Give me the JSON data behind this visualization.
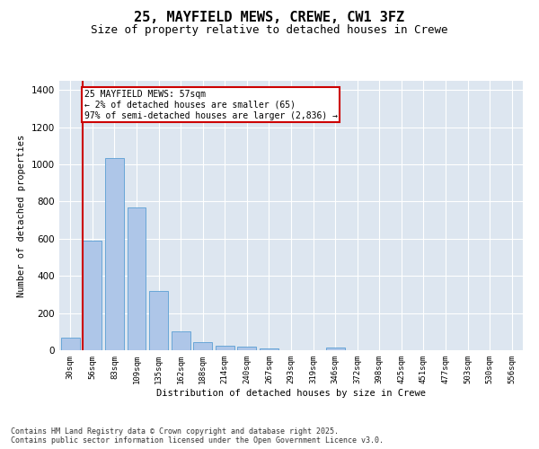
{
  "title": "25, MAYFIELD MEWS, CREWE, CW1 3FZ",
  "subtitle": "Size of property relative to detached houses in Crewe",
  "xlabel": "Distribution of detached houses by size in Crewe",
  "ylabel": "Number of detached properties",
  "categories": [
    "30sqm",
    "56sqm",
    "83sqm",
    "109sqm",
    "135sqm",
    "162sqm",
    "188sqm",
    "214sqm",
    "240sqm",
    "267sqm",
    "293sqm",
    "319sqm",
    "346sqm",
    "372sqm",
    "398sqm",
    "425sqm",
    "451sqm",
    "477sqm",
    "503sqm",
    "530sqm",
    "556sqm"
  ],
  "values": [
    70,
    590,
    1035,
    770,
    320,
    100,
    45,
    25,
    18,
    10,
    0,
    0,
    15,
    0,
    0,
    0,
    0,
    0,
    0,
    0,
    0
  ],
  "bar_color": "#aec6e8",
  "bar_edge_color": "#5a9fd4",
  "vline_color": "#cc0000",
  "annotation_text": "25 MAYFIELD MEWS: 57sqm\n← 2% of detached houses are smaller (65)\n97% of semi-detached houses are larger (2,836) →",
  "annotation_box_color": "#cc0000",
  "ylim": [
    0,
    1450
  ],
  "yticks": [
    0,
    200,
    400,
    600,
    800,
    1000,
    1200,
    1400
  ],
  "bg_color": "#dde6f0",
  "footer_line1": "Contains HM Land Registry data © Crown copyright and database right 2025.",
  "footer_line2": "Contains public sector information licensed under the Open Government Licence v3.0.",
  "title_fontsize": 11,
  "subtitle_fontsize": 9
}
